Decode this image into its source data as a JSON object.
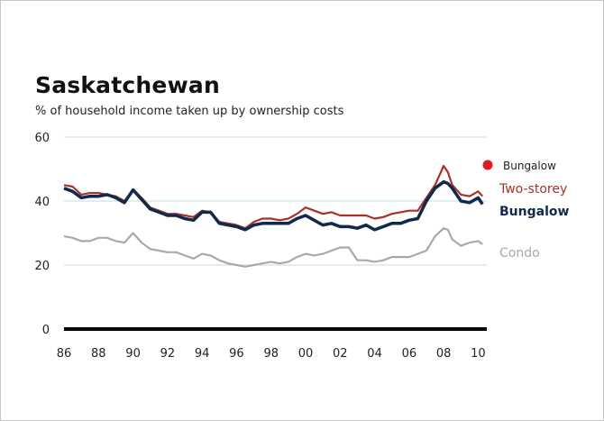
{
  "chart_data": {
    "type": "line",
    "title": "Saskatchewan",
    "subtitle": "% of household income taken up by ownership costs",
    "xlabel": "",
    "ylabel": "",
    "x_ticks": [
      "86",
      "88",
      "90",
      "92",
      "94",
      "96",
      "98",
      "00",
      "02",
      "04",
      "06",
      "08",
      "10"
    ],
    "y_ticks": [
      0,
      20,
      40,
      60
    ],
    "ylim": [
      0,
      60
    ],
    "grid": true,
    "x": [
      "1986",
      "1986.5",
      "1987",
      "1987.5",
      "1988",
      "1988.5",
      "1989",
      "1989.5",
      "1990",
      "1990.5",
      "1991",
      "1991.5",
      "1992",
      "1992.5",
      "1993",
      "1993.5",
      "1994",
      "1994.5",
      "1995",
      "1995.5",
      "1996",
      "1996.5",
      "1997",
      "1997.5",
      "1998",
      "1998.5",
      "1999",
      "1999.5",
      "2000",
      "2000.5",
      "2001",
      "2001.5",
      "2002",
      "2002.5",
      "2003",
      "2003.5",
      "2004",
      "2004.5",
      "2005",
      "2005.5",
      "2006",
      "2006.5",
      "2007",
      "2007.5",
      "2008",
      "2008.25",
      "2008.5",
      "2009",
      "2009.5",
      "2010",
      "2010.25"
    ],
    "series": [
      {
        "name": "Two-storey",
        "color": "#a8322a",
        "values": [
          45,
          44.5,
          42,
          42.5,
          42.5,
          42,
          41.5,
          40,
          43.5,
          41,
          38,
          37,
          36,
          36,
          35.5,
          35,
          37,
          36.5,
          33.5,
          33,
          32.5,
          31.5,
          33.5,
          34.5,
          34.5,
          34,
          34.5,
          36,
          38,
          37,
          36,
          36.5,
          35.5,
          35.5,
          35.5,
          35.5,
          34.5,
          35,
          36,
          36.5,
          37,
          37,
          41,
          45,
          51,
          49,
          45,
          42,
          41.5,
          43,
          41.5
        ]
      },
      {
        "name": "Bungalow",
        "color": "#0f2a4d",
        "values": [
          44,
          43,
          41,
          41.5,
          41.5,
          42,
          41,
          39.5,
          43.5,
          40.5,
          37.5,
          36.5,
          35.5,
          35.5,
          34.5,
          34,
          36.5,
          36.5,
          33,
          32.5,
          32,
          31,
          32.5,
          33,
          33,
          33,
          33,
          34.5,
          35.5,
          34,
          32.5,
          33,
          32,
          32,
          31.5,
          32.5,
          31,
          32,
          33,
          33,
          34,
          34.5,
          40,
          44,
          46,
          45.5,
          44,
          40,
          39.5,
          41,
          39
        ]
      },
      {
        "name": "Condo",
        "color": "#a9a9a9",
        "values": [
          29,
          28.5,
          27.5,
          27.5,
          28.5,
          28.5,
          27.5,
          27,
          30,
          27,
          25,
          24.5,
          24,
          24,
          23,
          22,
          23.5,
          23,
          21.5,
          20.5,
          20,
          19.5,
          20,
          20.5,
          21,
          20.5,
          21,
          22.5,
          23.5,
          23,
          23.5,
          24.5,
          25.5,
          25.5,
          21.5,
          21.5,
          21,
          21.5,
          22.5,
          22.5,
          22.5,
          23.5,
          24.5,
          29,
          31.5,
          31,
          28,
          26,
          27,
          27.5,
          26.5
        ]
      }
    ],
    "legend_marker": {
      "label": "Bungalow",
      "color": "#e01b24"
    },
    "end_labels": [
      "Two-storey",
      "Bungalow",
      "Condo"
    ]
  }
}
